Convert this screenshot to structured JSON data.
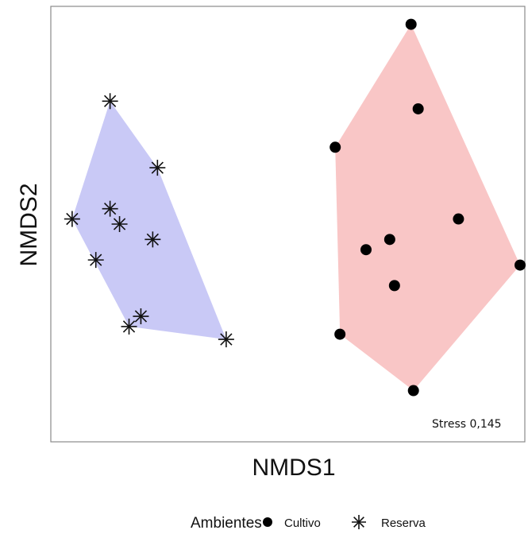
{
  "chart_data": {
    "type": "scatter",
    "title": "",
    "xlabel": "NMDS1",
    "ylabel": "NMDS2",
    "xlim": [
      -1.0,
      1.0
    ],
    "ylim": [
      -0.85,
      0.85
    ],
    "grid": false,
    "annotation": "Stress  0,145",
    "legend": {
      "title": "Ambientes",
      "placement": "bottom"
    },
    "series": [
      {
        "name": "Cultivo",
        "marker": "filled-circle",
        "hull_color": "#f9c6c6",
        "points": [
          [
            0.52,
            0.78
          ],
          [
            0.55,
            0.45
          ],
          [
            0.2,
            0.3
          ],
          [
            0.72,
            0.02
          ],
          [
            0.43,
            -0.06
          ],
          [
            0.33,
            -0.1
          ],
          [
            0.98,
            -0.16
          ],
          [
            0.45,
            -0.24
          ],
          [
            0.22,
            -0.43
          ],
          [
            0.53,
            -0.65
          ]
        ]
      },
      {
        "name": "Reserva",
        "marker": "asterisk",
        "hull_color": "#c9c9f6",
        "points": [
          [
            -0.75,
            0.48
          ],
          [
            -0.55,
            0.22
          ],
          [
            -0.75,
            0.06
          ],
          [
            -0.91,
            0.02
          ],
          [
            -0.71,
            0.0
          ],
          [
            -0.57,
            -0.06
          ],
          [
            -0.81,
            -0.14
          ],
          [
            -0.62,
            -0.36
          ],
          [
            -0.67,
            -0.4
          ],
          [
            -0.26,
            -0.45
          ]
        ]
      }
    ]
  }
}
